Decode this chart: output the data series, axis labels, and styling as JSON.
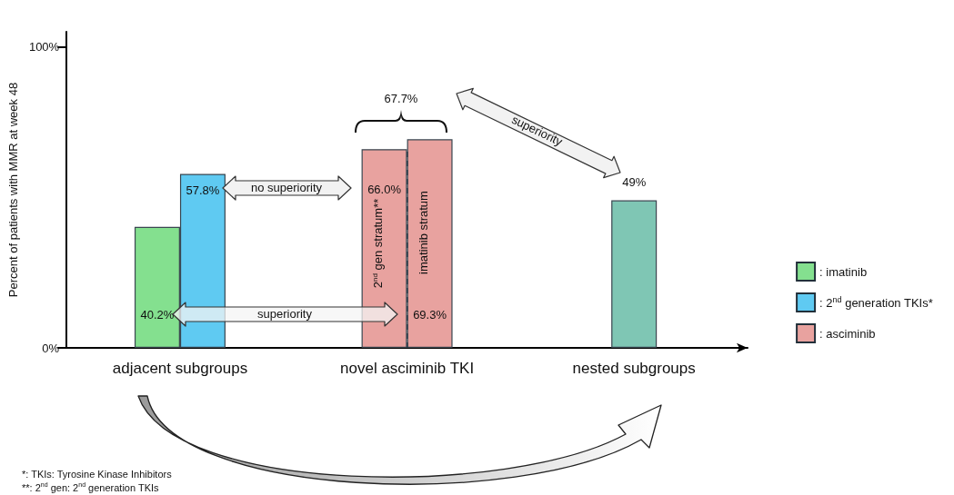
{
  "chart_data": {
    "type": "bar",
    "ylabel": "Percent of patients with MMR at week 48",
    "categories": [
      "adjacent subgroups",
      "novel asciminib TKI",
      "nested subgroups"
    ],
    "series": [
      {
        "name": ": imatinib",
        "color": "#84e08f",
        "values": [
          40.2,
          null,
          null
        ],
        "value_labels": [
          "40.2%",
          null,
          null
        ]
      },
      {
        "name": ": 2$^{nd}$ generation TKIs*",
        "color": "#5fcaf2",
        "values": [
          57.8,
          null,
          null
        ],
        "value_labels": [
          "57.8%",
          null,
          null
        ]
      },
      {
        "name": ": asciminib",
        "color": "#e8a29f",
        "values": [
          null,
          66.0,
          null
        ],
        "value_labels": [
          null,
          "66.0%",
          null
        ]
      },
      {
        "color": "#e8a29f",
        "values": [
          null,
          69.3,
          null
        ],
        "value_labels": [
          null,
          "69.3%",
          null
        ]
      },
      {
        "color": "#7fc6b4",
        "values": [
          null,
          null,
          49
        ],
        "value_labels": [
          null,
          null,
          "49%"
        ]
      }
    ],
    "ylim": [
      0,
      105
    ],
    "yticks": [
      {
        "value": 0,
        "label": "0%"
      },
      {
        "value": 100,
        "label": "100%"
      }
    ],
    "legend": "right",
    "ref_lines": [
      {
        "axis": "x",
        "value": "novel asciminib TKI",
        "color": "#2f3e4a",
        "line_style": "dashed"
      }
    ],
    "annotations": [
      "67.7%",
      "no superiority",
      "superiority",
      "superiority",
      "2$^{nd}$ gen stratum**",
      "imatinib stratum",
      "*: TKIs: Tyrosine Kinase Inhibitors",
      "**: 2$^{nd}$ gen: 2$^{nd}$ generation TKIs"
    ]
  }
}
